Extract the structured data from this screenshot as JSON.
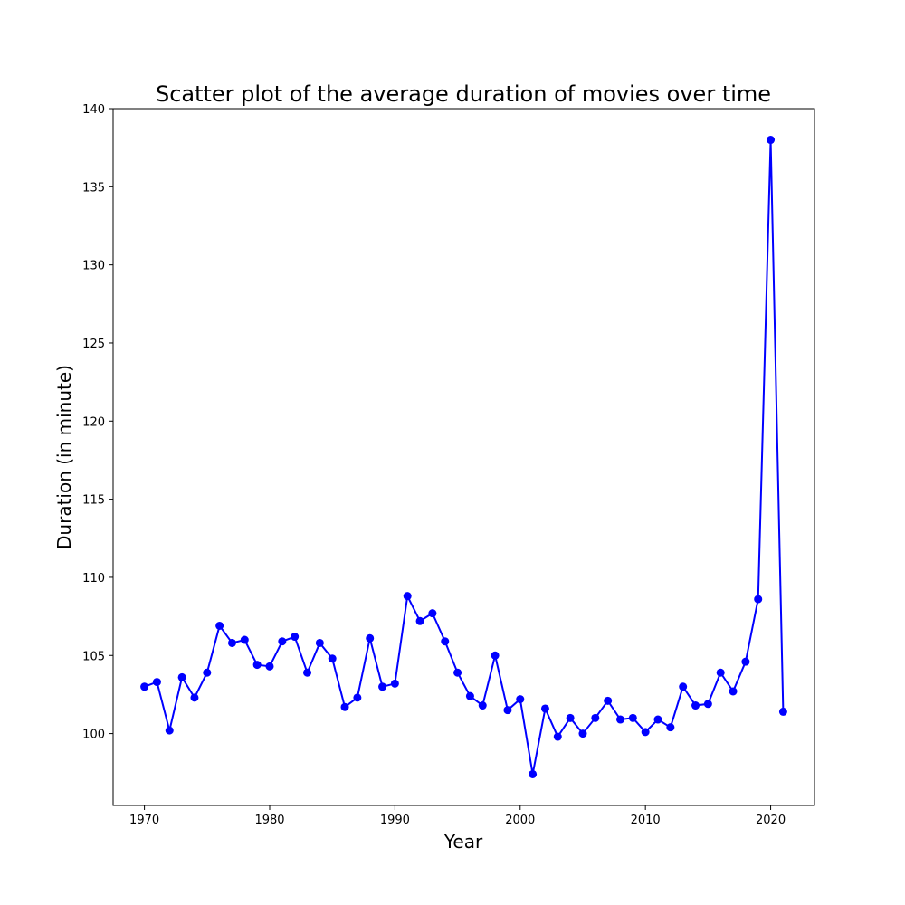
{
  "chart_data": {
    "type": "line",
    "title": "Scatter plot of the average duration of movies over time",
    "xlabel": "Year",
    "ylabel": "Duration (in minute)",
    "xlim": [
      1967.5,
      2023.5
    ],
    "ylim": [
      95.4,
      140
    ],
    "xticks": [
      1970,
      1980,
      1990,
      2000,
      2010,
      2020
    ],
    "yticks": [
      100,
      105,
      110,
      115,
      120,
      125,
      130,
      135,
      140
    ],
    "grid": false,
    "color": "#0000ff",
    "marker": "circle",
    "series": [
      {
        "x": [
          1970,
          1971,
          1972,
          1973,
          1974,
          1975,
          1976,
          1977,
          1978,
          1979,
          1980,
          1981,
          1982,
          1983,
          1984,
          1985,
          1986,
          1987,
          1988,
          1989,
          1990,
          1991,
          1992,
          1993,
          1994,
          1995,
          1996,
          1997,
          1998,
          1999,
          2000,
          2001,
          2002,
          2003,
          2004,
          2005,
          2006,
          2007,
          2008,
          2009,
          2010,
          2011,
          2012,
          2013,
          2014,
          2015,
          2016,
          2017,
          2018,
          2019,
          2020,
          2021
        ],
        "y": [
          103.0,
          103.3,
          100.2,
          103.6,
          102.3,
          103.9,
          106.9,
          105.8,
          106.0,
          104.4,
          104.3,
          105.9,
          106.2,
          103.9,
          105.8,
          104.8,
          101.7,
          102.3,
          106.1,
          103.0,
          103.2,
          108.8,
          107.2,
          107.7,
          105.9,
          103.9,
          102.4,
          101.8,
          105.0,
          101.5,
          102.2,
          97.4,
          101.6,
          99.8,
          101.0,
          100.0,
          101.0,
          102.1,
          100.9,
          101.0,
          100.1,
          100.9,
          100.4,
          103.0,
          101.8,
          101.9,
          103.9,
          102.7,
          104.6,
          108.6,
          138.0,
          101.4
        ]
      }
    ]
  }
}
